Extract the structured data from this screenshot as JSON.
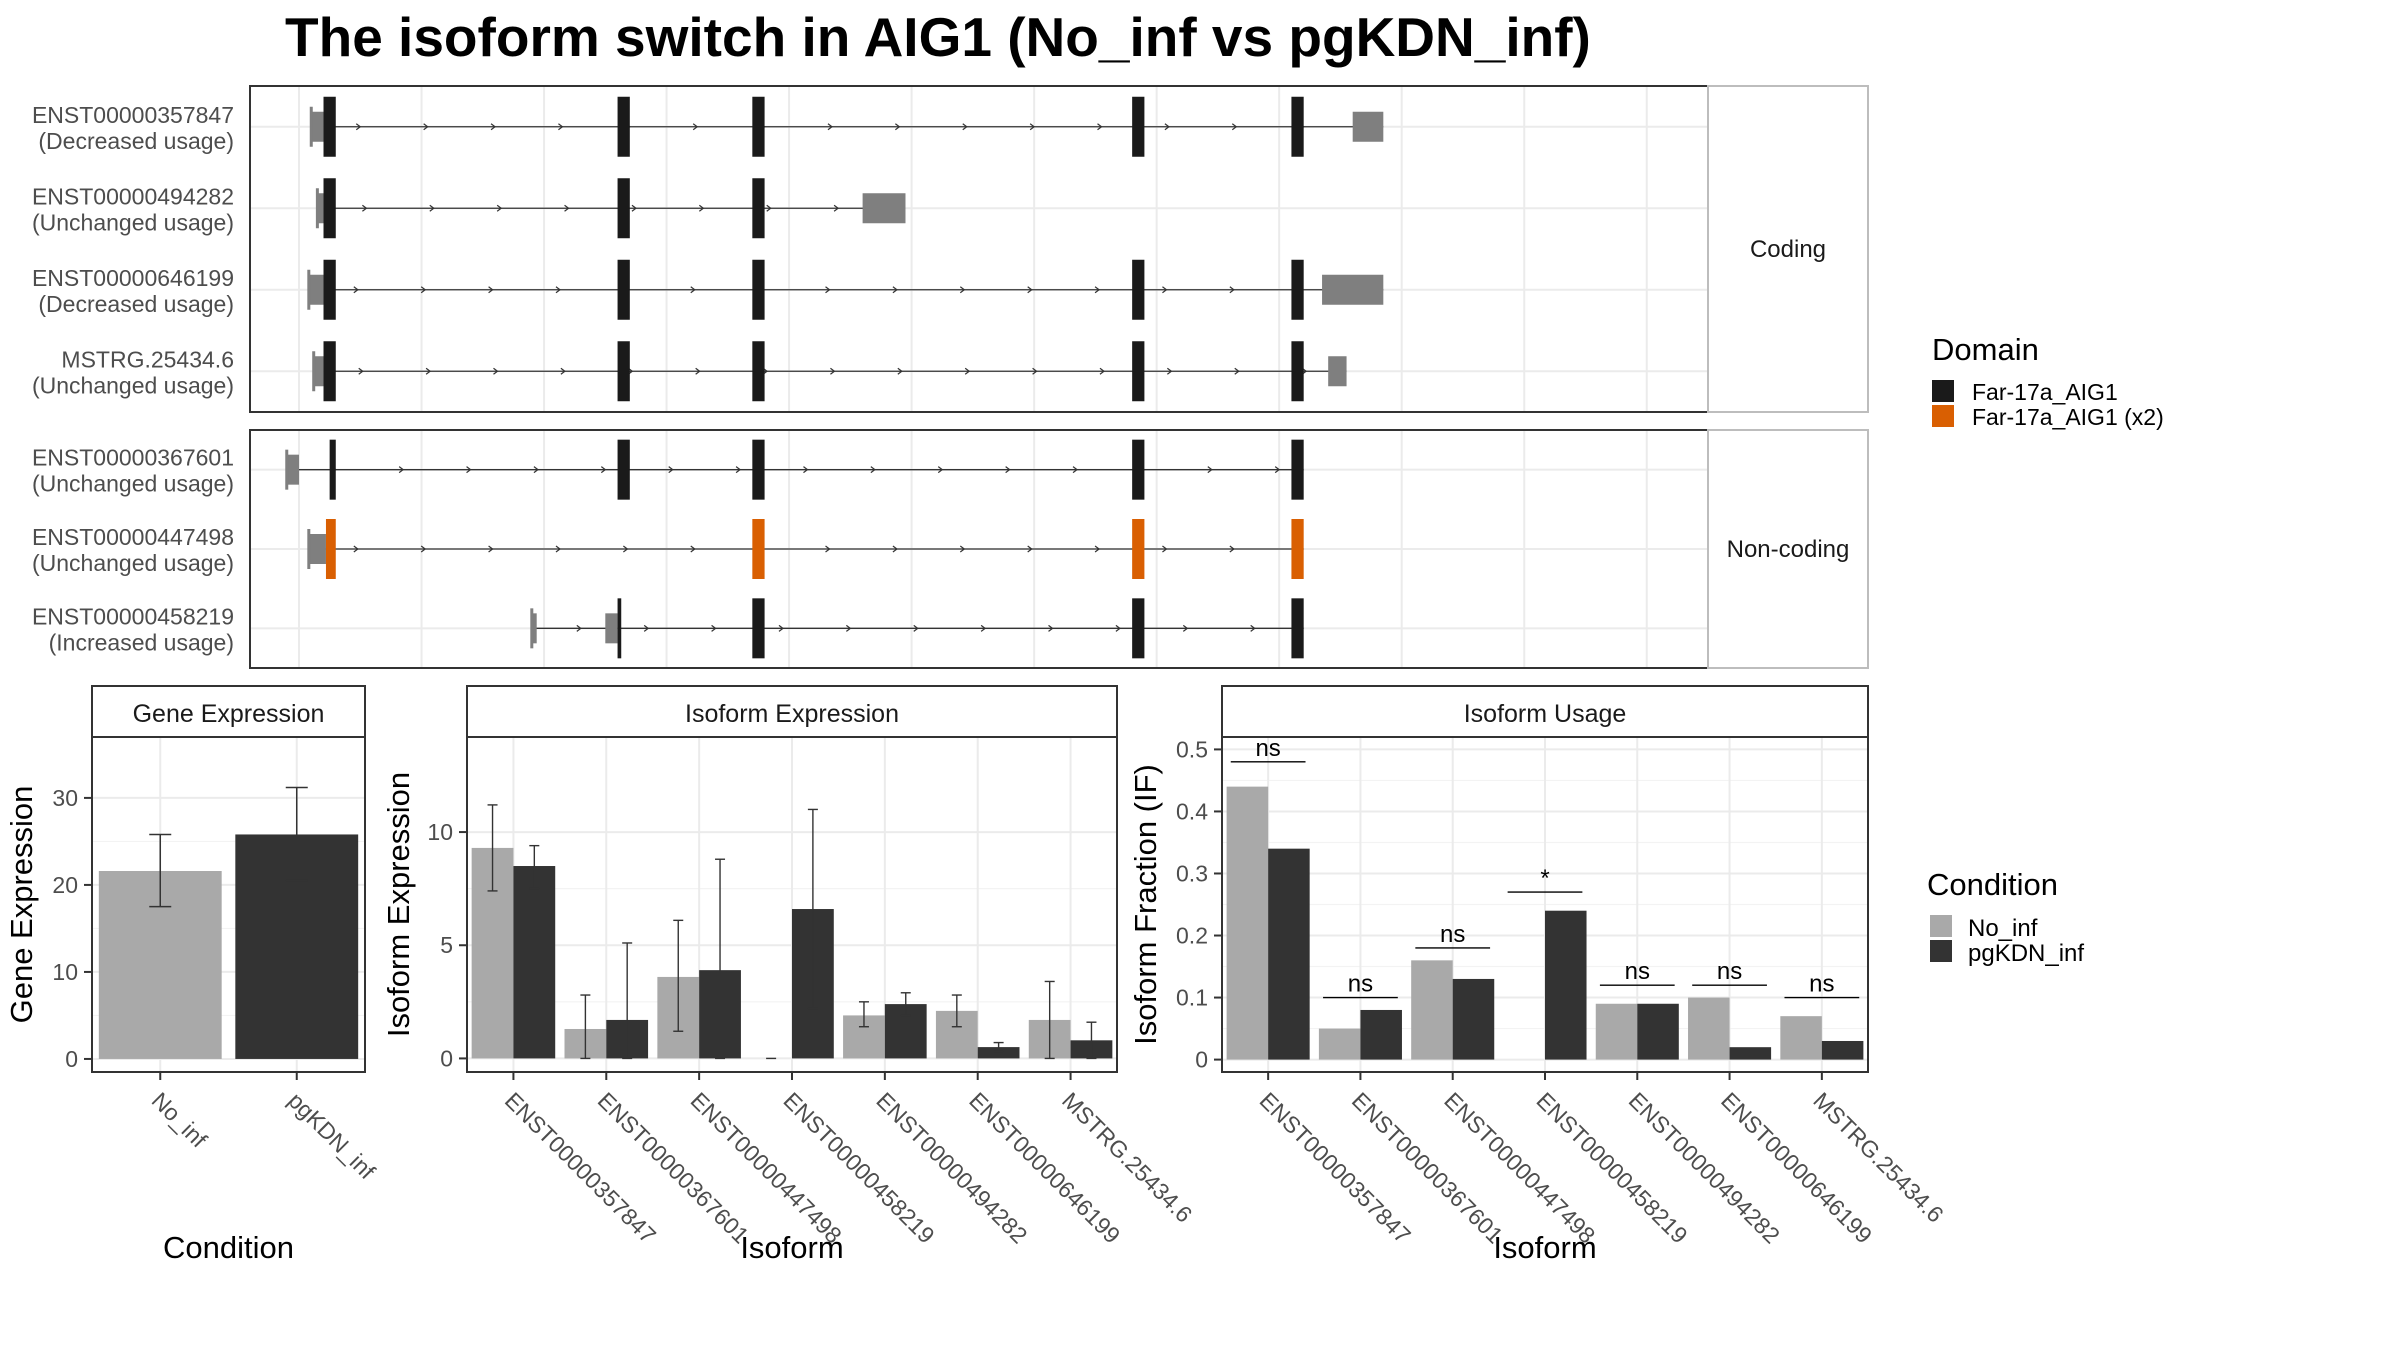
{
  "title": "The isoform switch in AIG1 (No_inf vs pgKDN_inf)",
  "colors": {
    "no_inf": "#a9a9a9",
    "pgkdn_inf": "#333333",
    "domain_far17a": "#1a1a1a",
    "domain_far17a_x2": "#d95f02",
    "utr": "#7f7f7f",
    "grid_major": "#ebebeb",
    "strip_fill": "#ffffff",
    "panel_border": "#333333"
  },
  "gene_structure": {
    "coord_range": [
      0,
      100
    ],
    "groups": [
      {
        "strip": "Coding",
        "transcripts": [
          {
            "id": "ENST00000357847",
            "usage": "(Decreased usage)",
            "utr": [
              [
                1,
                2
              ],
              [
                86,
                88.5
              ]
            ],
            "cds": [
              [
                2,
                3
              ],
              [
                26,
                27
              ],
              [
                37,
                38
              ],
              [
                68,
                69
              ],
              [
                81,
                82
              ]
            ],
            "domain": "Far-17a_AIG1",
            "span": [
              1,
              88.5
            ]
          },
          {
            "id": "ENST00000494282",
            "usage": "(Unchanged usage)",
            "utr": [
              [
                1.5,
                2
              ],
              [
                46,
                49.5
              ]
            ],
            "cds": [
              [
                2,
                3
              ],
              [
                26,
                27
              ],
              [
                37,
                38
              ]
            ],
            "domain": "Far-17a_AIG1",
            "span": [
              1.5,
              49.5
            ]
          },
          {
            "id": "ENST00000646199",
            "usage": "(Decreased usage)",
            "utr": [
              [
                0.8,
                2
              ],
              [
                83.5,
                88.5
              ]
            ],
            "cds": [
              [
                2,
                3
              ],
              [
                26,
                27
              ],
              [
                37,
                38
              ],
              [
                68,
                69
              ],
              [
                81,
                82
              ]
            ],
            "domain": "Far-17a_AIG1",
            "span": [
              0.8,
              88.5
            ]
          },
          {
            "id": "MSTRG.25434.6",
            "usage": "(Unchanged usage)",
            "utr": [
              [
                1.2,
                2
              ],
              [
                84,
                85.5
              ]
            ],
            "cds": [
              [
                2,
                3
              ],
              [
                26,
                27
              ],
              [
                37,
                38
              ],
              [
                68,
                69
              ],
              [
                81,
                82
              ]
            ],
            "domain": "Far-17a_AIG1",
            "span": [
              1.2,
              85.5
            ]
          }
        ]
      },
      {
        "strip": "Non-coding",
        "transcripts": [
          {
            "id": "ENST00000367601",
            "usage": "(Unchanged usage)",
            "utr": [
              [
                -1,
                0
              ]
            ],
            "cds": [
              [
                2.5,
                3
              ],
              [
                26,
                27
              ],
              [
                37,
                38
              ],
              [
                68,
                69
              ],
              [
                81,
                82
              ]
            ],
            "domain": "Far-17a_AIG1",
            "span": [
              -1,
              82
            ]
          },
          {
            "id": "ENST00000447498",
            "usage": "(Unchanged usage)",
            "utr": [
              [
                0.8,
                2.2
              ]
            ],
            "cds": [
              [
                2.2,
                3
              ],
              [
                37,
                38
              ],
              [
                68,
                69
              ],
              [
                81,
                82
              ]
            ],
            "domain": "Far-17a_AIG1 (x2)",
            "span": [
              0.8,
              82
            ]
          },
          {
            "id": "ENST00000458219",
            "usage": "(Increased usage)",
            "utr": [
              [
                19,
                19.4
              ],
              [
                25,
                26
              ]
            ],
            "cds": [
              [
                26,
                26.3
              ],
              [
                37,
                38
              ],
              [
                68,
                69
              ],
              [
                81,
                82
              ]
            ],
            "domain": "Far-17a_AIG1",
            "span": [
              19,
              82
            ]
          }
        ]
      }
    ]
  },
  "legend_domain": {
    "title": "Domain",
    "items": [
      {
        "label": "Far-17a_AIG1",
        "color_key": "domain_far17a"
      },
      {
        "label": "Far-17a_AIG1 (x2)",
        "color_key": "domain_far17a_x2"
      }
    ]
  },
  "legend_condition": {
    "title": "Condition",
    "items": [
      {
        "label": "No_inf",
        "color_key": "no_inf"
      },
      {
        "label": "pgKDN_inf",
        "color_key": "pgkdn_inf"
      }
    ]
  },
  "chart_data": [
    {
      "type": "bar",
      "title": "Gene Expression",
      "xlabel": "Condition",
      "ylabel": "Gene Expression",
      "ylim": [
        -1.5,
        37
      ],
      "yticks": [
        0,
        10,
        20,
        30
      ],
      "categories": [
        "No_inf",
        "pgKDN_inf"
      ],
      "values": [
        21.6,
        25.8
      ],
      "error_low": [
        17.5,
        20.5
      ],
      "error_high": [
        25.8,
        31.2
      ],
      "grid": true
    },
    {
      "type": "bar",
      "title": "Isoform Expression",
      "xlabel": "Isoform",
      "ylabel": "Isoform Expression",
      "ylim": [
        -0.6,
        14.2
      ],
      "yticks": [
        0,
        5,
        10
      ],
      "categories": [
        "ENST00000357847",
        "ENST00000367601",
        "ENST00000447498",
        "ENST00000458219",
        "ENST00000494282",
        "ENST00000646199",
        "MSTRG.25434.6"
      ],
      "series": [
        {
          "name": "No_inf",
          "values": [
            9.3,
            1.3,
            3.6,
            0.0,
            1.9,
            2.1,
            1.7
          ],
          "error_low": [
            7.4,
            0.0,
            1.2,
            0.0,
            1.4,
            1.4,
            0.0
          ],
          "error_high": [
            11.2,
            2.8,
            6.1,
            0.0,
            2.5,
            2.8,
            3.4
          ]
        },
        {
          "name": "pgKDN_inf",
          "values": [
            8.5,
            1.7,
            3.9,
            6.6,
            2.4,
            0.5,
            0.8
          ],
          "error_low": [
            7.5,
            0.0,
            0.0,
            2.2,
            1.9,
            0.3,
            0.0
          ],
          "error_high": [
            9.4,
            5.1,
            8.8,
            11.0,
            2.9,
            0.7,
            1.6
          ]
        }
      ],
      "grid": true
    },
    {
      "type": "bar",
      "title": "Isoform Usage",
      "xlabel": "Isoform",
      "ylabel": "Isoform Fraction (IF)",
      "ylim": [
        -0.02,
        0.52
      ],
      "yticks": [
        0.0,
        0.1,
        0.2,
        0.3,
        0.4,
        0.5
      ],
      "categories": [
        "ENST00000357847",
        "ENST00000367601",
        "ENST00000447498",
        "ENST00000458219",
        "ENST00000494282",
        "ENST00000646199",
        "MSTRG.25434.6"
      ],
      "series": [
        {
          "name": "No_inf",
          "values": [
            0.44,
            0.05,
            0.16,
            0.0,
            0.09,
            0.1,
            0.07
          ]
        },
        {
          "name": "pgKDN_inf",
          "values": [
            0.34,
            0.08,
            0.13,
            0.24,
            0.09,
            0.02,
            0.03
          ]
        }
      ],
      "significance": [
        {
          "label": "ns",
          "y": 0.48
        },
        {
          "label": "ns",
          "y": 0.1
        },
        {
          "label": "ns",
          "y": 0.18
        },
        {
          "label": "*",
          "y": 0.27
        },
        {
          "label": "ns",
          "y": 0.12
        },
        {
          "label": "ns",
          "y": 0.12
        },
        {
          "label": "ns",
          "y": 0.1
        }
      ],
      "grid": true
    }
  ]
}
